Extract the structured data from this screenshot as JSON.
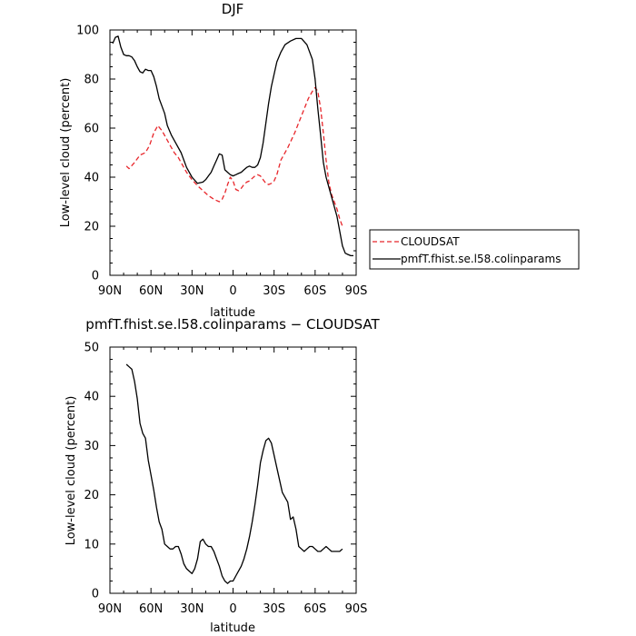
{
  "chart_data": [
    {
      "type": "line",
      "title": "DJF",
      "xlabel": "latitude",
      "ylabel": "Low-level cloud (percent)",
      "xlim": [
        90,
        -90
      ],
      "ylim": [
        0,
        100
      ],
      "xticks": [
        90,
        60,
        30,
        0,
        -30,
        -60,
        -90
      ],
      "xticklabels": [
        "90N",
        "60N",
        "30N",
        "0",
        "30S",
        "60S",
        "90S"
      ],
      "yticks": [
        0,
        20,
        40,
        60,
        80,
        100
      ],
      "yticklabels": [
        "0",
        "20",
        "40",
        "60",
        "80",
        "100"
      ],
      "legend": "right",
      "series": [
        {
          "name": "CLOUDSAT",
          "color": "#e8262b",
          "dash": "dashed",
          "x": [
            78,
            76,
            72,
            68,
            64,
            61,
            58,
            55,
            52,
            49,
            46,
            43,
            40,
            37,
            34,
            30,
            26,
            22,
            18,
            14,
            12,
            10,
            8,
            6,
            4,
            2,
            0,
            -2,
            -4,
            -6,
            -8,
            -10,
            -12,
            -14,
            -16,
            -18,
            -20,
            -22,
            -24,
            -26,
            -28,
            -30,
            -32,
            -35,
            -40,
            -45,
            -50,
            -55,
            -58,
            -60,
            -62,
            -64,
            -66,
            -68,
            -70,
            -72,
            -74,
            -76,
            -78,
            -80
          ],
          "y": [
            44.5,
            43.5,
            46,
            49,
            50,
            53,
            58,
            61,
            59,
            56,
            53,
            50,
            48,
            45,
            42,
            39,
            36.5,
            34.5,
            32.5,
            31,
            30.5,
            30,
            31,
            33.5,
            37,
            40,
            38.5,
            35,
            34.5,
            35.5,
            37,
            38,
            38.5,
            39.5,
            40.5,
            41,
            40.5,
            39,
            37.5,
            37,
            37.5,
            38.5,
            41,
            47,
            52,
            58,
            65,
            72,
            75,
            76.5,
            75,
            68,
            58,
            47,
            38,
            33,
            30,
            27,
            23,
            20
          ]
        },
        {
          "name": "pmfT.fhist.se.l58.colinparams",
          "color": "#000000",
          "dash": "solid",
          "x": [
            88,
            86,
            84,
            82,
            80,
            78,
            76,
            74,
            72,
            70,
            68,
            66,
            64,
            62,
            60,
            58,
            56,
            54,
            52,
            50,
            48,
            45,
            42,
            38,
            34,
            30,
            26,
            22,
            20,
            18,
            16,
            14,
            12,
            10,
            8,
            6,
            4,
            2,
            0,
            -2,
            -4,
            -6,
            -8,
            -10,
            -12,
            -14,
            -16,
            -18,
            -20,
            -22,
            -24,
            -26,
            -28,
            -30,
            -32,
            -35,
            -38,
            -42,
            -46,
            -50,
            -54,
            -58,
            -60,
            -62,
            -64,
            -66,
            -68,
            -70,
            -72,
            -74,
            -76,
            -78,
            -80,
            -82,
            -84,
            -86,
            -88
          ],
          "y": [
            94.5,
            97,
            97.5,
            93,
            90,
            89.5,
            89.5,
            89,
            87.5,
            85,
            83,
            82.5,
            84,
            83.5,
            83.5,
            81,
            77,
            72,
            69,
            66,
            61,
            57,
            54,
            50,
            44,
            40,
            37.5,
            38,
            39,
            40.5,
            42,
            44.5,
            47,
            49.5,
            49,
            43,
            42,
            41,
            40.5,
            41,
            41.5,
            42,
            43,
            44,
            44.5,
            44,
            44,
            45,
            48,
            54,
            62,
            70,
            77,
            82,
            87,
            91,
            94,
            95.5,
            96.5,
            96.5,
            94,
            88,
            80,
            68,
            57,
            46,
            40,
            36,
            32,
            28,
            24,
            18,
            12,
            9,
            8.5,
            8,
            8
          ]
        }
      ]
    },
    {
      "type": "line",
      "title": "pmfT.fhist.se.l58.colinparams − CLOUDSAT",
      "xlabel": "latitude",
      "ylabel": "Low-level cloud (percent)",
      "xlim": [
        90,
        -90
      ],
      "ylim": [
        0,
        50
      ],
      "xticks": [
        90,
        60,
        30,
        0,
        -30,
        -60,
        -90
      ],
      "xticklabels": [
        "90N",
        "60N",
        "30N",
        "0",
        "30S",
        "60S",
        "90S"
      ],
      "yticks": [
        0,
        10,
        20,
        30,
        40,
        50
      ],
      "yticklabels": [
        "0",
        "10",
        "20",
        "30",
        "40",
        "50"
      ],
      "series": [
        {
          "color": "#000000",
          "dash": "solid",
          "x": [
            78,
            76,
            74,
            72,
            70,
            68,
            66,
            64,
            62,
            60,
            58,
            56,
            54,
            52,
            50,
            48,
            46,
            44,
            42,
            40,
            38,
            36,
            34,
            32,
            30,
            28,
            26,
            24,
            22,
            20,
            18,
            16,
            14,
            12,
            10,
            8,
            6,
            4,
            2,
            0,
            -2,
            -4,
            -6,
            -8,
            -10,
            -12,
            -14,
            -16,
            -18,
            -20,
            -22,
            -24,
            -26,
            -28,
            -30,
            -32,
            -34,
            -36,
            -38,
            -40,
            -42,
            -44,
            -46,
            -48,
            -50,
            -52,
            -54,
            -56,
            -58,
            -60,
            -62,
            -64,
            -66,
            -68,
            -70,
            -72,
            -74,
            -76,
            -78,
            -80
          ],
          "y": [
            46.5,
            46,
            45.5,
            43,
            39.5,
            34.5,
            32.5,
            31.5,
            27,
            24,
            21,
            17.5,
            14.5,
            13,
            10,
            9.5,
            9,
            9,
            9.5,
            9.5,
            8,
            6,
            5,
            4.5,
            4,
            5,
            7,
            10.5,
            11,
            10,
            9.5,
            9.5,
            8.5,
            7,
            5.5,
            3.5,
            2.5,
            2,
            2.5,
            2.5,
            3.5,
            4.5,
            5.5,
            7,
            9,
            11.5,
            14.5,
            18,
            22,
            26.5,
            29,
            31,
            31.5,
            30.5,
            28,
            25.5,
            23,
            20.5,
            19.5,
            18.5,
            15,
            15.5,
            13,
            9.5,
            9,
            8.5,
            9,
            9.5,
            9.5,
            9,
            8.5,
            8.5,
            9,
            9.5,
            9,
            8.5,
            8.5,
            8.5,
            8.5,
            9
          ]
        }
      ]
    }
  ]
}
